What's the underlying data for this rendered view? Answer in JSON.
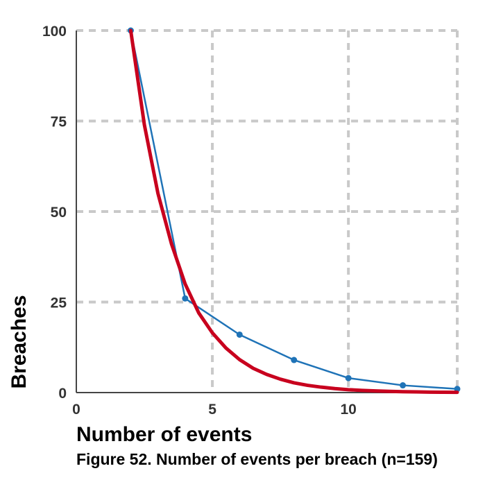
{
  "chart_data": {
    "type": "line",
    "xlabel": "Number of events",
    "ylabel": "Breaches",
    "xlim": [
      0,
      14
    ],
    "ylim": [
      0,
      100
    ],
    "x_ticks": [
      0,
      5,
      10
    ],
    "y_ticks": [
      0,
      25,
      50,
      75,
      100
    ],
    "grid": true,
    "series": [
      {
        "color": "#1f73b7",
        "markers": true,
        "x": [
          2,
          4,
          6,
          8,
          10,
          12,
          14
        ],
        "y": [
          100,
          26,
          16,
          9,
          4,
          2,
          1
        ]
      },
      {
        "color": "#c8001e",
        "markers": false,
        "fit": "exponential",
        "x": [
          2,
          2.5,
          3,
          3.5,
          4,
          4.5,
          5,
          5.5,
          6,
          6.5,
          7,
          7.5,
          8,
          8.5,
          9,
          9.5,
          10,
          10.5,
          11,
          11.5,
          12,
          12.5,
          13,
          13.5,
          14
        ],
        "y": [
          100,
          74,
          55,
          41,
          30,
          22,
          16.5,
          12.3,
          9.1,
          6.7,
          5,
          3.7,
          2.7,
          2,
          1.5,
          1.1,
          0.8,
          0.6,
          0.45,
          0.33,
          0.25,
          0.18,
          0.13,
          0.1,
          0.07
        ]
      }
    ]
  },
  "caption": "Figure 52.  Number of events per breach (n=159)"
}
